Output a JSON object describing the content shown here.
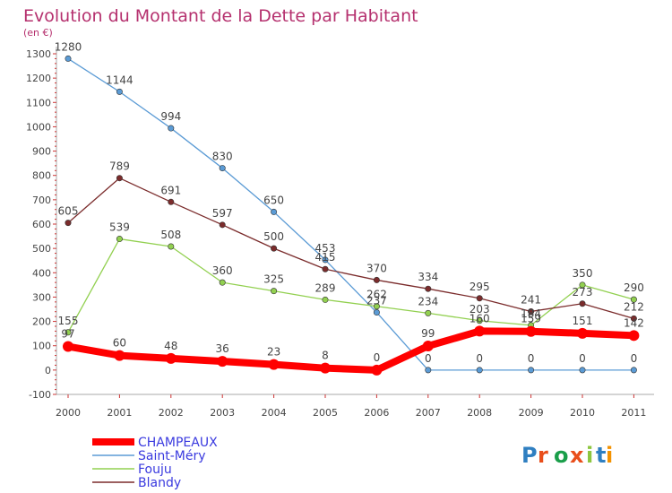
{
  "chart_data": {
    "type": "line",
    "title": "Evolution du Montant de la Dette par Habitant",
    "subtitle": "(en €)",
    "categories": [
      "2000",
      "2001",
      "2002",
      "2003",
      "2004",
      "2005",
      "2006",
      "2007",
      "2008",
      "2009",
      "2010",
      "2011"
    ],
    "ylim": [
      -100,
      1300
    ],
    "yticks": [
      -100,
      0,
      100,
      200,
      300,
      400,
      500,
      600,
      700,
      800,
      900,
      1000,
      1100,
      1200,
      1300
    ],
    "grid": false,
    "legend_position": "bottom-left",
    "series": [
      {
        "name": "CHAMPEAUX",
        "color": "#ff0000",
        "values": [
          97,
          60,
          48,
          36,
          23,
          8,
          0,
          99,
          160,
          159,
          151,
          142
        ]
      },
      {
        "name": "Saint-Méry",
        "color": "#5b9bd5",
        "values": [
          1280,
          1144,
          994,
          830,
          650,
          453,
          237,
          0,
          0,
          0,
          0,
          0
        ]
      },
      {
        "name": "Fouju",
        "color": "#92d050",
        "values": [
          155,
          539,
          508,
          360,
          325,
          289,
          262,
          234,
          203,
          184,
          350,
          290
        ]
      },
      {
        "name": "Blandy",
        "color": "#7b2c2c",
        "values": [
          605,
          789,
          691,
          597,
          500,
          415,
          370,
          334,
          295,
          241,
          273,
          212
        ]
      }
    ]
  },
  "labels": {
    "CHAMPEAUX": [
      "97",
      "60",
      "48",
      "36",
      "23",
      "8",
      "0",
      "99",
      "160",
      "159",
      "151",
      "142"
    ],
    "Saint-Méry": [
      "1280",
      "1144",
      "994",
      "830",
      "650",
      "453",
      "237",
      "0",
      "0",
      "0",
      "0",
      "0"
    ],
    "Fouju": [
      "155",
      "539",
      "508",
      "360",
      "325",
      "289",
      "262",
      "234",
      "203",
      "184",
      "350",
      "290"
    ],
    "Blandy": [
      "605",
      "789",
      "691",
      "597",
      "500",
      "415",
      "370",
      "334",
      "295",
      "241",
      "273",
      "212"
    ]
  },
  "brand": {
    "text": "Proxiti",
    "colors": [
      "#2f7fc1",
      "#e94e1b",
      "#1a9e4a",
      "#e94e1b",
      "#8dc63f",
      "#2f7fc1",
      "#f39200"
    ]
  }
}
